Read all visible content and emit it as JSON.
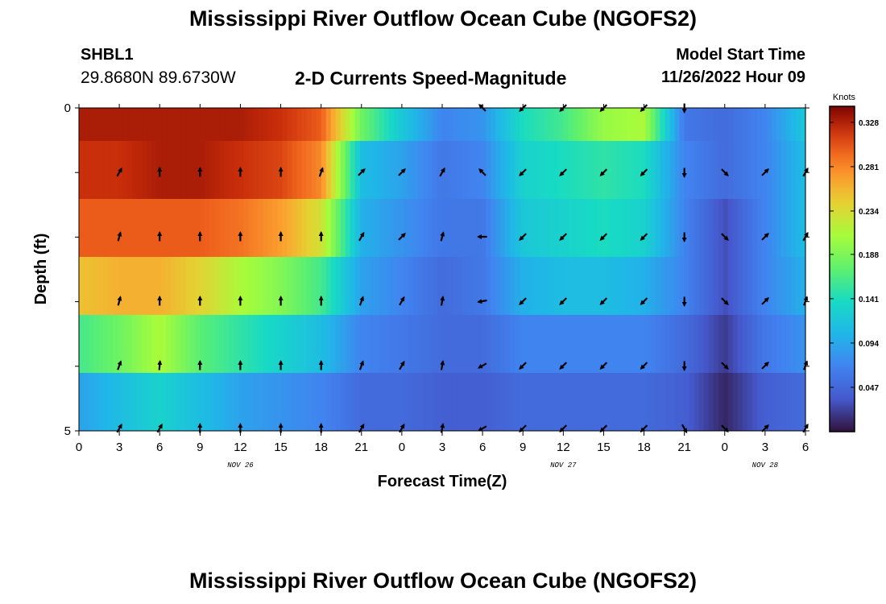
{
  "header": {
    "title": "Mississippi River Outflow Ocean Cube (NGOFS2)",
    "station_name": "SHBL1",
    "station_coords": "29.8680N  89.6730W",
    "chart_title": "2-D Currents Speed-Magnitude",
    "model_start_label": "Model Start Time",
    "model_start_value": "11/26/2022 Hour 09"
  },
  "footer": {
    "title": "Mississippi River Outflow Ocean Cube (NGOFS2)"
  },
  "chart_data": {
    "type": "heatmap",
    "title": "2-D Currents Speed-Magnitude",
    "xlabel": "Forecast Time(Z)",
    "ylabel": "Depth (ft)",
    "x_tick_labels": [
      "0",
      "3",
      "6",
      "9",
      "12",
      "15",
      "18",
      "21",
      "0",
      "3",
      "6",
      "9",
      "12",
      "15",
      "18",
      "21",
      "0",
      "3",
      "6"
    ],
    "day_labels": [
      {
        "label": "NOV 26",
        "tick_index": 4
      },
      {
        "label": "NOV 27",
        "tick_index": 12
      },
      {
        "label": "NOV 28",
        "tick_index": 17
      }
    ],
    "y_tick_labels": [
      "0",
      "5"
    ],
    "ylim": [
      0,
      5
    ],
    "depth_levels": 5,
    "colorbar": {
      "unit_label": "Knots",
      "ticks": [
        "0.328",
        "0.281",
        "0.234",
        "0.188",
        "0.141",
        "0.094",
        "0.047"
      ],
      "range": [
        0,
        0.345
      ],
      "colormap": "turbo"
    },
    "x_hours": [
      0,
      3,
      6,
      9,
      12,
      15,
      18,
      21,
      24,
      27,
      30,
      33,
      36,
      39,
      42,
      45,
      48,
      51,
      54
    ],
    "speed_knots": [
      [
        0.33,
        0.33,
        0.33,
        0.33,
        0.33,
        0.32,
        0.3,
        0.18,
        0.12,
        0.07,
        0.08,
        0.14,
        0.16,
        0.2,
        0.21,
        0.06,
        0.05,
        0.07,
        0.12
      ],
      [
        0.32,
        0.32,
        0.33,
        0.33,
        0.32,
        0.31,
        0.28,
        0.11,
        0.09,
        0.06,
        0.07,
        0.13,
        0.14,
        0.15,
        0.14,
        0.07,
        0.05,
        0.07,
        0.11
      ],
      [
        0.3,
        0.3,
        0.3,
        0.3,
        0.29,
        0.27,
        0.23,
        0.1,
        0.08,
        0.06,
        0.06,
        0.12,
        0.13,
        0.14,
        0.13,
        0.07,
        0.03,
        0.07,
        0.11
      ],
      [
        0.25,
        0.26,
        0.26,
        0.24,
        0.21,
        0.19,
        0.16,
        0.09,
        0.07,
        0.05,
        0.06,
        0.1,
        0.11,
        0.11,
        0.1,
        0.07,
        0.03,
        0.07,
        0.1
      ],
      [
        0.16,
        0.18,
        0.21,
        0.17,
        0.15,
        0.13,
        0.11,
        0.07,
        0.06,
        0.05,
        0.05,
        0.07,
        0.07,
        0.07,
        0.07,
        0.05,
        0.02,
        0.06,
        0.08
      ],
      [
        0.09,
        0.11,
        0.13,
        0.11,
        0.09,
        0.08,
        0.07,
        0.05,
        0.05,
        0.04,
        0.04,
        0.05,
        0.05,
        0.05,
        0.05,
        0.04,
        0.01,
        0.04,
        0.05
      ]
    ],
    "vector_directions_deg": [
      [
        null,
        null,
        null,
        null,
        null,
        null,
        null,
        null,
        null,
        null,
        225,
        135,
        135,
        135,
        135,
        90,
        null,
        null,
        null
      ],
      [
        null,
        300,
        270,
        270,
        270,
        270,
        290,
        315,
        315,
        300,
        225,
        135,
        135,
        135,
        135,
        90,
        45,
        315,
        300
      ],
      [
        null,
        285,
        270,
        270,
        270,
        270,
        270,
        300,
        315,
        285,
        180,
        135,
        135,
        135,
        135,
        90,
        45,
        315,
        300
      ],
      [
        null,
        285,
        270,
        270,
        270,
        270,
        270,
        290,
        300,
        280,
        170,
        135,
        135,
        135,
        135,
        90,
        45,
        315,
        290
      ],
      [
        null,
        290,
        275,
        270,
        270,
        270,
        270,
        290,
        300,
        280,
        150,
        135,
        135,
        135,
        135,
        90,
        45,
        315,
        290
      ],
      [
        null,
        300,
        300,
        270,
        270,
        270,
        270,
        300,
        300,
        280,
        150,
        135,
        135,
        135,
        135,
        60,
        45,
        315,
        300
      ]
    ]
  }
}
